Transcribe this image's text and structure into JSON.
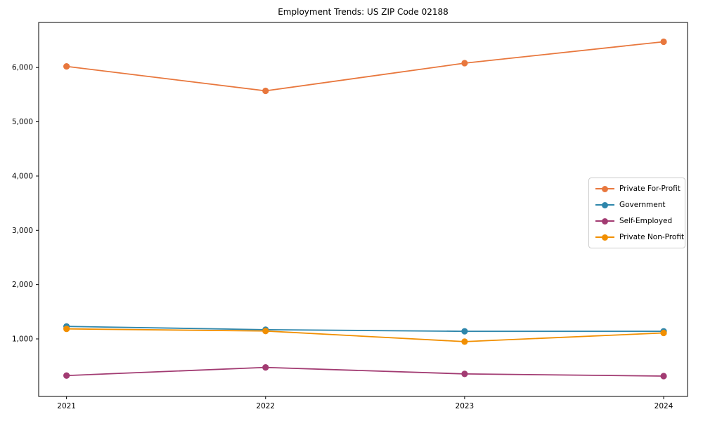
{
  "title": "Employment Trends: US ZIP Code 02188",
  "chart_data": {
    "type": "line",
    "title": "Employment Trends: US ZIP Code 02188",
    "xlabel": "",
    "ylabel": "",
    "x": [
      2021,
      2022,
      2023,
      2024
    ],
    "x_tick_labels": [
      "2021",
      "2022",
      "2023",
      "2024"
    ],
    "series": [
      {
        "name": "Private For-Profit",
        "color": "#E8773D",
        "values": [
          6020,
          5570,
          6080,
          6475
        ]
      },
      {
        "name": "Government",
        "color": "#2E86AB",
        "values": [
          1230,
          1170,
          1140,
          1140
        ]
      },
      {
        "name": "Self-Employed",
        "color": "#A23B72",
        "values": [
          325,
          475,
          355,
          315
        ]
      },
      {
        "name": "Private Non-Profit",
        "color": "#F18F01",
        "values": [
          1185,
          1145,
          950,
          1110
        ]
      }
    ],
    "y_ticks": [
      1000,
      2000,
      3000,
      4000,
      5000,
      6000
    ],
    "y_tick_labels": [
      "1,000",
      "2,000",
      "3,000",
      "4,000",
      "5,000",
      "6,000"
    ],
    "xlim": [
      2020.86,
      2024.12
    ],
    "ylim": [
      -60,
      6830
    ],
    "grid": false,
    "legend_position": "right-center",
    "marker": "circle",
    "axis_color": "#000000"
  }
}
